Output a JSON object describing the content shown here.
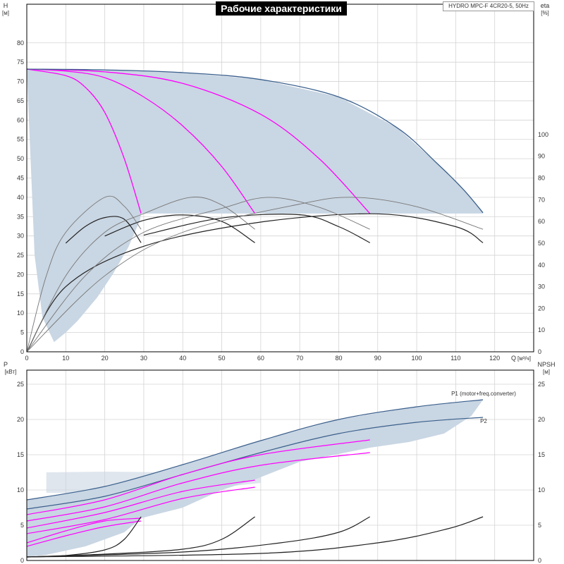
{
  "title": "Рабочие характеристики",
  "model": "HYDRO MPC-F 4CR20-5, 50Hz",
  "colors": {
    "envelope": "#c9d6e3",
    "envelope_edge": "#3a5f8c",
    "pump_curve": "#ff00ff",
    "eta_dark": "#222222",
    "eta_light": "#777777",
    "power_label": "#2b5ea8"
  },
  "chart_data": [
    {
      "type": "line",
      "name": "head",
      "xlabel": "Q",
      "xunit": "[м³/ч]",
      "ylabel": "H",
      "yunit": "[м]",
      "y2label": "eta",
      "y2unit": "[%]",
      "xlim": [
        0,
        130
      ],
      "ylim": [
        0,
        90
      ],
      "y2lim": [
        0,
        160
      ],
      "xticks": [
        0,
        10,
        20,
        30,
        40,
        50,
        60,
        70,
        80,
        90,
        100,
        110,
        120
      ],
      "yticks": [
        0,
        5,
        10,
        15,
        20,
        25,
        30,
        35,
        40,
        45,
        50,
        55,
        60,
        65,
        70,
        75,
        80
      ],
      "y2ticks": [
        0,
        10,
        20,
        30,
        40,
        50,
        60,
        70,
        80,
        90,
        100
      ],
      "grid": true,
      "envelope": [
        [
          0,
          73.2
        ],
        [
          20,
          73
        ],
        [
          40,
          72.3
        ],
        [
          60,
          70.5
        ],
        [
          80,
          66
        ],
        [
          95,
          58
        ],
        [
          105,
          49
        ],
        [
          112,
          42
        ],
        [
          117,
          36
        ],
        [
          117,
          35.8
        ],
        [
          29.3,
          35.8
        ],
        [
          29,
          34
        ],
        [
          26,
          27
        ],
        [
          22,
          20
        ],
        [
          18,
          14
        ],
        [
          13,
          8
        ],
        [
          10,
          5
        ],
        [
          7,
          2.5
        ],
        [
          4,
          9
        ],
        [
          2,
          25
        ],
        [
          0,
          73.2
        ]
      ],
      "series": [
        {
          "name": "",
          "group": "pump_head",
          "points": [
            [
              0,
              73.2
            ],
            [
              10,
              71.5
            ],
            [
              15,
              68.5
            ],
            [
              20,
              62
            ],
            [
              25,
              50
            ],
            [
              29.3,
              35.8
            ]
          ]
        },
        {
          "name": "",
          "group": "pump_head",
          "points": [
            [
              0,
              73.2
            ],
            [
              10,
              72.7
            ],
            [
              20,
              71
            ],
            [
              30,
              66
            ],
            [
              40,
              58.5
            ],
            [
              50,
              48
            ],
            [
              58.5,
              35.8
            ]
          ]
        },
        {
          "name": "",
          "group": "pump_head",
          "points": [
            [
              0,
              73.2
            ],
            [
              20,
              72.5
            ],
            [
              40,
              69.5
            ],
            [
              60,
              61.5
            ],
            [
              75,
              50
            ],
            [
              88,
              35.8
            ]
          ]
        },
        {
          "name": "",
          "group": "system_head",
          "points": [
            [
              0,
              73.2
            ],
            [
              20,
              73
            ],
            [
              40,
              72.3
            ],
            [
              60,
              70.5
            ],
            [
              80,
              66
            ],
            [
              95,
              58
            ],
            [
              105,
              49
            ],
            [
              112,
              42
            ],
            [
              117,
              36
            ]
          ]
        },
        {
          "name": "",
          "group": "eta_dark",
          "axis": "y2",
          "points": [
            [
              10,
              50
            ],
            [
              15,
              57.7
            ],
            [
              20,
              61.8
            ],
            [
              25,
              61
            ],
            [
              29.3,
              50.2
            ]
          ]
        },
        {
          "name": "",
          "group": "eta_dark",
          "axis": "y2",
          "points": [
            [
              20,
              53.3
            ],
            [
              30,
              60.5
            ],
            [
              40,
              63
            ],
            [
              50,
              60
            ],
            [
              58.5,
              50.2
            ]
          ]
        },
        {
          "name": "",
          "group": "eta_dark",
          "axis": "y2",
          "points": [
            [
              30,
              53.7
            ],
            [
              50,
              61.6
            ],
            [
              70,
              63.1
            ],
            [
              80,
              57.6
            ],
            [
              88,
              50.2
            ]
          ]
        },
        {
          "name": "",
          "group": "eta_dark",
          "axis": "y2",
          "points": [
            [
              0,
              0
            ],
            [
              10,
              30
            ],
            [
              30,
              48.6
            ],
            [
              60,
              59.7
            ],
            [
              90,
              63.5
            ],
            [
              110,
              57.6
            ],
            [
              117,
              50.2
            ]
          ]
        },
        {
          "name": "",
          "group": "eta_light",
          "axis": "y2",
          "points": [
            [
              0,
              0
            ],
            [
              5,
              35
            ],
            [
              10,
              55
            ],
            [
              20,
              71.1
            ],
            [
              25,
              67
            ],
            [
              29.3,
              56.4
            ]
          ]
        },
        {
          "name": "",
          "group": "eta_light",
          "axis": "y2",
          "points": [
            [
              0,
              0
            ],
            [
              10,
              35
            ],
            [
              20,
              55
            ],
            [
              30,
              63.6
            ],
            [
              42,
              71.1
            ],
            [
              50,
              67.6
            ],
            [
              58.5,
              56.4
            ]
          ]
        },
        {
          "name": "",
          "group": "eta_light",
          "axis": "y2",
          "points": [
            [
              0,
              0
            ],
            [
              15,
              35
            ],
            [
              30,
              55
            ],
            [
              50,
              66
            ],
            [
              62,
              71.1
            ],
            [
              75,
              66.5
            ],
            [
              88,
              56.4
            ]
          ]
        },
        {
          "name": "",
          "group": "eta_light",
          "axis": "y2",
          "points": [
            [
              0,
              0
            ],
            [
              20,
              35
            ],
            [
              40,
              55
            ],
            [
              70,
              68
            ],
            [
              84,
              71.1
            ],
            [
              100,
              66.8
            ],
            [
              117,
              56.4
            ]
          ]
        }
      ]
    },
    {
      "type": "line",
      "name": "power",
      "ylabel": "P",
      "yunit": "[кВт]",
      "y2label": "NPSH",
      "y2unit": "[м]",
      "xlim": [
        0,
        130
      ],
      "ylim": [
        0,
        27
      ],
      "y2lim": [
        0,
        27
      ],
      "yticks": [
        0,
        5,
        10,
        15,
        20,
        25
      ],
      "y2ticks": [
        0,
        5,
        10,
        15,
        20,
        25
      ],
      "grid": true,
      "envelope": [
        [
          0,
          8.6
        ],
        [
          20,
          10.5
        ],
        [
          40,
          13.6
        ],
        [
          60,
          17
        ],
        [
          80,
          20
        ],
        [
          100,
          21.8
        ],
        [
          117,
          22.8
        ],
        [
          114,
          20.5
        ],
        [
          107,
          18
        ],
        [
          98,
          16.8
        ],
        [
          88,
          16
        ],
        [
          70,
          14
        ],
        [
          58.5,
          11.5
        ],
        [
          50,
          10
        ],
        [
          40,
          7.5
        ],
        [
          29.3,
          6
        ],
        [
          25,
          4
        ],
        [
          15,
          2
        ],
        [
          5,
          0.8
        ],
        [
          0,
          0.5
        ],
        [
          0,
          8.6
        ]
      ],
      "envelope2": [
        [
          5,
          12.5
        ],
        [
          20,
          12.6
        ],
        [
          40,
          12.5
        ],
        [
          60,
          13.5
        ],
        [
          60,
          11
        ],
        [
          40,
          9.8
        ],
        [
          20,
          9.5
        ],
        [
          5,
          9.6
        ]
      ],
      "series": [
        {
          "name": "P1 (motor+freq.converter)",
          "group": "p1",
          "points": [
            [
              0,
              8.6
            ],
            [
              20,
              10.5
            ],
            [
              40,
              13.6
            ],
            [
              60,
              17
            ],
            [
              80,
              20
            ],
            [
              100,
              21.8
            ],
            [
              117,
              22.8
            ]
          ]
        },
        {
          "name": "P2",
          "group": "p2",
          "points": [
            [
              0,
              7.3
            ],
            [
              20,
              9.1
            ],
            [
              40,
              12.2
            ],
            [
              60,
              15.3
            ],
            [
              80,
              18
            ],
            [
              100,
              19.6
            ],
            [
              117,
              20.3
            ]
          ]
        },
        {
          "name": "",
          "group": "pump_power",
          "points": [
            [
              0,
              2.5
            ],
            [
              10,
              4.2
            ],
            [
              20,
              5.6
            ],
            [
              29.3,
              6
            ]
          ]
        },
        {
          "name": "",
          "group": "pump_power",
          "points": [
            [
              0,
              2
            ],
            [
              10,
              3.5
            ],
            [
              20,
              4.8
            ],
            [
              29.3,
              5.6
            ]
          ]
        },
        {
          "name": "",
          "group": "pump_power",
          "points": [
            [
              0,
              4.6
            ],
            [
              20,
              6.8
            ],
            [
              40,
              9.8
            ],
            [
              58.5,
              11.4
            ]
          ]
        },
        {
          "name": "",
          "group": "pump_power",
          "points": [
            [
              0,
              3.8
            ],
            [
              20,
              5.8
            ],
            [
              40,
              8.8
            ],
            [
              58.5,
              10.4
            ]
          ]
        },
        {
          "name": "",
          "group": "pump_power",
          "points": [
            [
              0,
              6.5
            ],
            [
              20,
              8.6
            ],
            [
              40,
              12.2
            ],
            [
              60,
              15
            ],
            [
              88,
              17.1
            ]
          ]
        },
        {
          "name": "",
          "group": "pump_power",
          "points": [
            [
              0,
              5.6
            ],
            [
              20,
              7.6
            ],
            [
              40,
              11
            ],
            [
              60,
              13.5
            ],
            [
              88,
              15.3
            ]
          ]
        },
        {
          "name": "",
          "group": "npsh",
          "axis": "y2",
          "points": [
            [
              0,
              0.5
            ],
            [
              10,
              0.7
            ],
            [
              20,
              1.5
            ],
            [
              25,
              3
            ],
            [
              29.3,
              6.2
            ]
          ]
        },
        {
          "name": "",
          "group": "npsh",
          "axis": "y2",
          "points": [
            [
              0,
              0.5
            ],
            [
              20,
              0.9
            ],
            [
              40,
              1.6
            ],
            [
              50,
              3
            ],
            [
              58.5,
              6.2
            ]
          ]
        },
        {
          "name": "",
          "group": "npsh",
          "axis": "y2",
          "points": [
            [
              0,
              0.5
            ],
            [
              40,
              1.2
            ],
            [
              65,
              2.5
            ],
            [
              80,
              4
            ],
            [
              88,
              6.2
            ]
          ]
        },
        {
          "name": "",
          "group": "npsh",
          "axis": "y2",
          "points": [
            [
              0,
              0.5
            ],
            [
              60,
              1
            ],
            [
              90,
              2.5
            ],
            [
              108,
              4.5
            ],
            [
              117,
              6.2
            ]
          ]
        }
      ]
    }
  ]
}
